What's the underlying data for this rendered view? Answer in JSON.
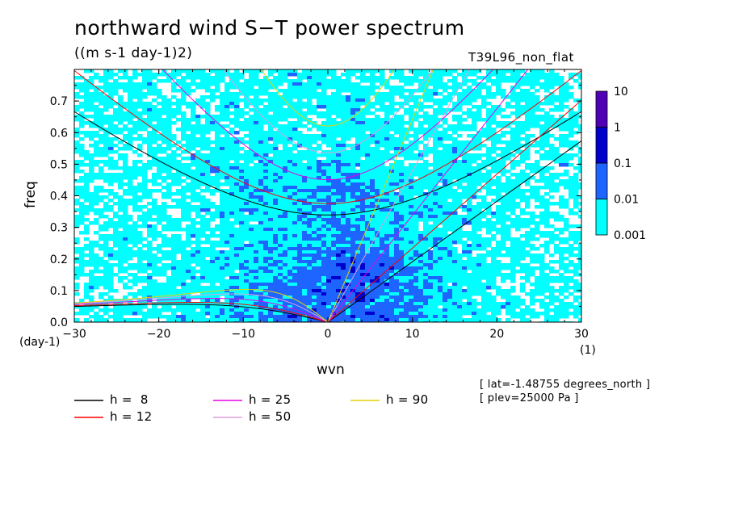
{
  "header": {
    "title": "northward wind S−T power spectrum",
    "units": "((m s-1 day-1)2)",
    "run": "T39L96_non_flat"
  },
  "axes": {
    "ylabel": "freq",
    "xlabel": "wvn",
    "x_unit": "(1)",
    "y_unit": "(day-1)"
  },
  "info": {
    "lat": "[ lat=-1.48755 degrees_north ]",
    "plev": "[ plev=25000 Pa ]"
  },
  "colorbar": {
    "levels": [
      "0.001",
      "0.01",
      "0.1",
      "1",
      "10"
    ],
    "colors": [
      "#00ffff",
      "#1e64ff",
      "#0000cc",
      "#5000b4"
    ]
  },
  "legend": [
    {
      "label": "h =  8",
      "color": "#000000"
    },
    {
      "label": "h = 12",
      "color": "#ff0000"
    },
    {
      "label": "h = 25",
      "color": "#e600e6"
    },
    {
      "label": "h = 50",
      "color": "#dda0dd"
    },
    {
      "label": "h = 90",
      "color": "#e6d200"
    }
  ],
  "chart_data": {
    "type": "heatmap",
    "title": "northward wind S−T power spectrum",
    "xlabel": "wvn",
    "ylabel": "freq",
    "xlim": [
      -30,
      30
    ],
    "ylim": [
      0,
      0.8
    ],
    "x_ticks": [
      "−30",
      "−20",
      "−10",
      "0",
      "10",
      "20",
      "30"
    ],
    "y_ticks": [
      "0.0",
      "0.1",
      "0.2",
      "0.3",
      "0.4",
      "0.5",
      "0.6",
      "0.7"
    ],
    "contour_levels": [
      0.001,
      0.01,
      0.1,
      1,
      10
    ],
    "dispersion_curves": [
      {
        "name": "h =  8",
        "equivalent_depth": 8,
        "color": "#000000"
      },
      {
        "name": "h = 12",
        "equivalent_depth": 12,
        "color": "#ff0000"
      },
      {
        "name": "h = 25",
        "equivalent_depth": 25,
        "color": "#e600e6"
      },
      {
        "name": "h = 50",
        "equivalent_depth": 50,
        "color": "#dda0dd"
      },
      {
        "name": "h = 90",
        "equivalent_depth": 90,
        "color": "#e6d200"
      }
    ]
  }
}
